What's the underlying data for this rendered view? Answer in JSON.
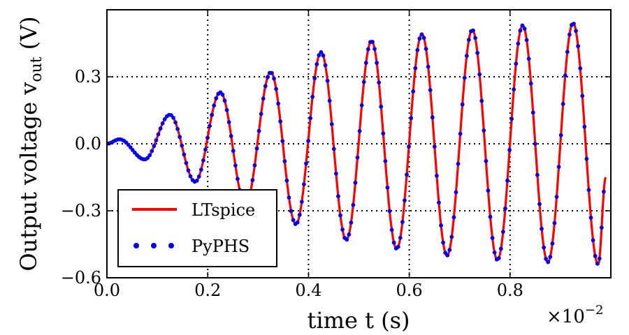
{
  "chart_data": {
    "type": "line",
    "xlabel": "time t (s)",
    "ylabel": "Output voltage v",
    "ylabel_subscript": "out",
    "ylabel_unit": "(V)",
    "x_multiplier": "×10",
    "x_multiplier_exponent": "−2",
    "xlim": [
      0.0,
      1.0
    ],
    "ylim": [
      -0.6,
      0.6
    ],
    "x_ticks": [
      0.0,
      0.2,
      0.4,
      0.6,
      0.8
    ],
    "x_tick_labels": [
      "0.0",
      "0.2",
      "0.4",
      "0.6",
      "0.8"
    ],
    "y_ticks": [
      -0.6,
      -0.3,
      0.0,
      0.3
    ],
    "y_tick_labels": [
      "−0.6",
      "−0.3",
      "0.0",
      "0.3"
    ],
    "grid": true,
    "grid_style": "dotted",
    "legend_position": "bottom-left",
    "series": [
      {
        "name": "LTspice",
        "style": "line",
        "color": "#ff0000",
        "x": [
          0.0,
          0.025,
          0.075,
          0.125,
          0.175,
          0.225,
          0.275,
          0.325,
          0.375,
          0.425,
          0.475,
          0.525,
          0.575,
          0.625,
          0.675,
          0.725,
          0.775,
          0.825,
          0.875,
          0.925,
          0.975,
          0.99
        ],
        "y": [
          0.0,
          0.02,
          -0.07,
          0.13,
          -0.17,
          0.23,
          -0.27,
          0.32,
          -0.36,
          0.41,
          -0.43,
          0.46,
          -0.47,
          0.49,
          -0.5,
          0.51,
          -0.52,
          0.53,
          -0.53,
          0.54,
          -0.54,
          -0.15
        ]
      },
      {
        "name": "PyPHS",
        "style": "points",
        "color": "#0000ee",
        "x": [
          0.0,
          0.025,
          0.075,
          0.125,
          0.175,
          0.225,
          0.275,
          0.325,
          0.375,
          0.425,
          0.475,
          0.525,
          0.575,
          0.625,
          0.675,
          0.725,
          0.775,
          0.825,
          0.875,
          0.925,
          0.975,
          0.99
        ],
        "y": [
          0.0,
          0.02,
          -0.07,
          0.13,
          -0.17,
          0.23,
          -0.27,
          0.32,
          -0.36,
          0.41,
          -0.43,
          0.46,
          -0.47,
          0.49,
          -0.5,
          0.51,
          -0.52,
          0.53,
          -0.53,
          0.54,
          -0.54,
          -0.15
        ]
      }
    ]
  }
}
